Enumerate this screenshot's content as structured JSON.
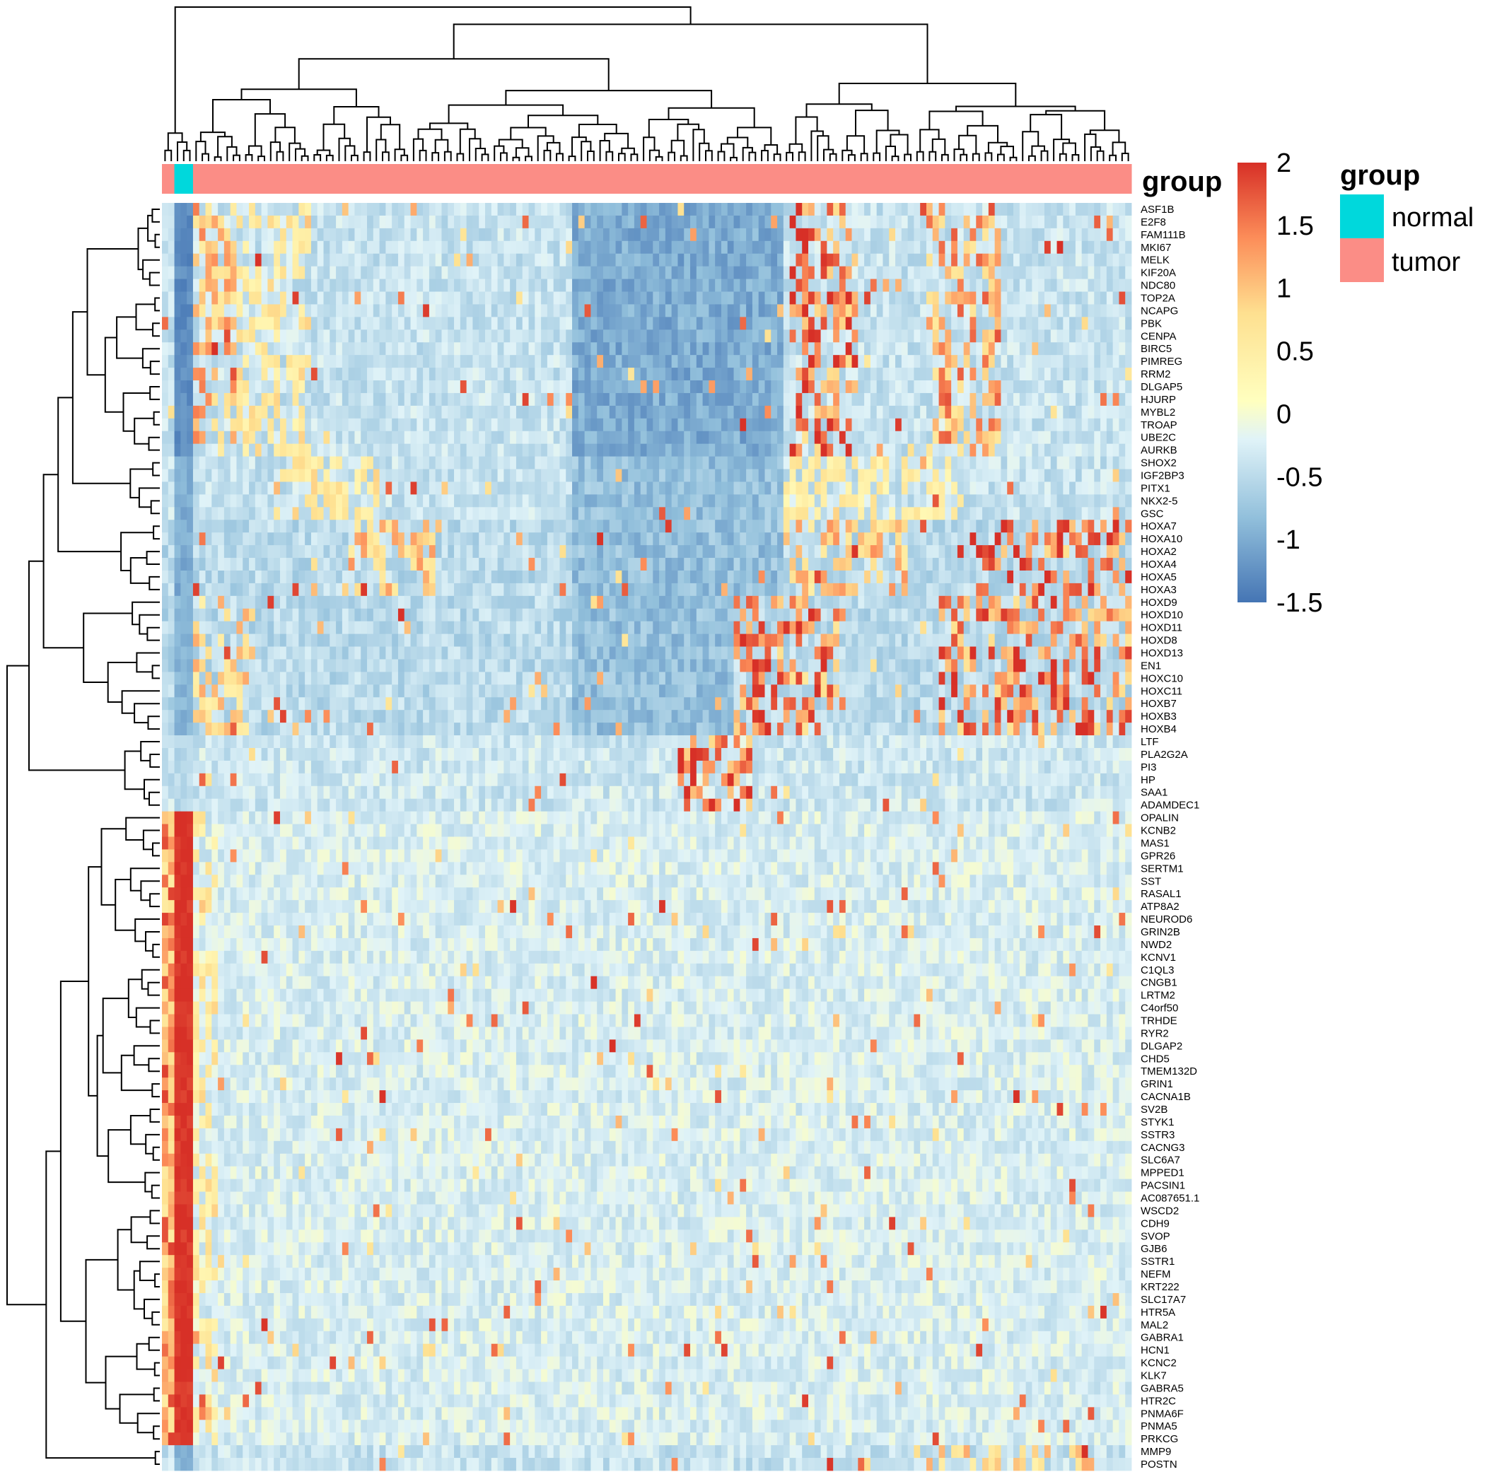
{
  "chart_data": {
    "type": "heatmap",
    "title": "",
    "n_samples": 156,
    "sample_groups": [
      {
        "group": "tumor",
        "count": 2
      },
      {
        "group": "normal",
        "count": 3
      },
      {
        "group": "tumor",
        "count": 151
      }
    ],
    "annotation": {
      "title": "group",
      "levels": [
        {
          "name": "normal",
          "color": "#00d8dc"
        },
        {
          "name": "tumor",
          "color": "#fb8d86"
        }
      ]
    },
    "color_scale": {
      "min": -1.5,
      "max": 2,
      "ticks": [
        "2",
        "1.5",
        "1",
        "0.5",
        "0",
        "-0.5",
        "-1",
        "-1.5"
      ],
      "tick_values": [
        2,
        1.5,
        1,
        0.5,
        0,
        -0.5,
        -1,
        -1.5
      ],
      "stops": [
        {
          "value": -1.5,
          "color": "#4575b4"
        },
        {
          "value": -0.83,
          "color": "#91bfdb"
        },
        {
          "value": -0.2,
          "color": "#e0f3f8"
        },
        {
          "value": 0.1,
          "color": "#ffffbf"
        },
        {
          "value": 0.8,
          "color": "#fee090"
        },
        {
          "value": 1.4,
          "color": "#fc8d59"
        },
        {
          "value": 2.0,
          "color": "#d73027"
        }
      ]
    },
    "genes": [
      "ASF1B",
      "E2F8",
      "FAM111B",
      "MKI67",
      "MELK",
      "KIF20A",
      "NDC80",
      "TOP2A",
      "NCAPG",
      "PBK",
      "CENPA",
      "BIRC5",
      "PIMREG",
      "RRM2",
      "DLGAP5",
      "HJURP",
      "MYBL2",
      "TROAP",
      "UBE2C",
      "AURKB",
      "SHOX2",
      "IGF2BP3",
      "PITX1",
      "NKX2-5",
      "GSC",
      "HOXA7",
      "HOXA10",
      "HOXA2",
      "HOXA4",
      "HOXA5",
      "HOXA3",
      "HOXD9",
      "HOXD10",
      "HOXD11",
      "HOXD8",
      "HOXD13",
      "EN1",
      "HOXC10",
      "HOXC11",
      "HOXB7",
      "HOXB3",
      "HOXB4",
      "LTF",
      "PLA2G2A",
      "PI3",
      "HP",
      "SAA1",
      "ADAMDEC1",
      "OPALIN",
      "KCNB2",
      "MAS1",
      "GPR26",
      "SERTM1",
      "SST",
      "RASAL1",
      "ATP8A2",
      "NEUROD6",
      "GRIN2B",
      "NWD2",
      "KCNV1",
      "C1QL3",
      "CNGB1",
      "LRTM2",
      "C4orf50",
      "TRHDE",
      "RYR2",
      "DLGAP2",
      "CHD5",
      "TMEM132D",
      "GRIN1",
      "CACNA1B",
      "SV2B",
      "STYK1",
      "SSTR3",
      "CACNG3",
      "SLC6A7",
      "MPPED1",
      "PACSIN1",
      "AC087651.1",
      "WSCD2",
      "CDH9",
      "SVOP",
      "GJB6",
      "SSTR1",
      "NEFM",
      "KRT222",
      "SLC17A7",
      "HTR5A",
      "MAL2",
      "GABRA1",
      "HCN1",
      "KCNC2",
      "KLK7",
      "GABRA5",
      "HTR2C",
      "PNMA6F",
      "PNMA5",
      "PRKCG",
      "MMP9",
      "POSTN"
    ],
    "gene_blocks": [
      {
        "genes": "ASF1B-AURKB",
        "normal": -1.3,
        "tumor": -0.4,
        "hot_sample_clusters": [
          [
            3,
            12,
            1.0
          ],
          [
            12,
            24,
            0.6
          ],
          [
            101,
            112,
            1.6
          ],
          [
            123,
            135,
            1.2
          ]
        ],
        "cold_sample_clusters": [
          [
            66,
            100,
            -1.0
          ]
        ]
      },
      {
        "genes": "SHOX2-GSC",
        "normal": -1.0,
        "tumor": -0.4,
        "hot_sample_clusters": [
          [
            20,
            35,
            0.6
          ],
          [
            100,
            130,
            0.5
          ]
        ],
        "cold_sample_clusters": [
          [
            66,
            100,
            -0.8
          ]
        ]
      },
      {
        "genes": "HOXA7-HOXA3",
        "normal": -1.0,
        "tumor": -0.5,
        "hot_sample_clusters": [
          [
            30,
            45,
            0.9
          ],
          [
            100,
            120,
            0.9
          ],
          [
            130,
            156,
            1.5
          ]
        ],
        "cold_sample_clusters": [
          [
            66,
            100,
            -0.8
          ]
        ]
      },
      {
        "genes": "HOXD9-HOXB4",
        "normal": -0.9,
        "tumor": -0.5,
        "hot_sample_clusters": [
          [
            5,
            15,
            0.8
          ],
          [
            92,
            110,
            1.4
          ],
          [
            125,
            156,
            1.4
          ]
        ],
        "cold_sample_clusters": [
          [
            66,
            92,
            -0.8
          ]
        ]
      },
      {
        "genes": "LTF-ADAMDEC1",
        "normal": -0.5,
        "tumor": -0.35,
        "hot_sample_clusters": [
          [
            83,
            95,
            1.6
          ]
        ],
        "cold_sample_clusters": []
      },
      {
        "genes": "OPALIN-PRKCG",
        "normal": 2.0,
        "tumor": -0.25,
        "hot_sample_clusters": [
          [
            5,
            9,
            0.6
          ]
        ],
        "cold_sample_clusters": []
      },
      {
        "genes": "MMP9-POSTN",
        "normal": -0.9,
        "tumor": -0.4,
        "hot_sample_clusters": [
          [
            120,
            150,
            0.8
          ]
        ],
        "cold_sample_clusters": []
      }
    ]
  }
}
